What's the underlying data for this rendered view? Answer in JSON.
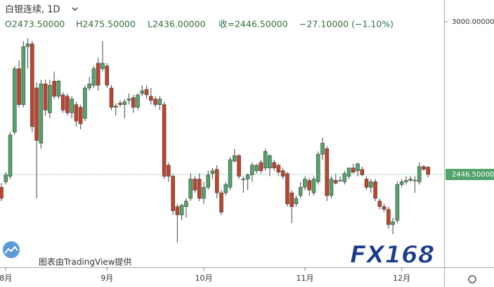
{
  "header": {
    "symbol": "白银连续, 1D",
    "open": "O2473.50000",
    "high": "H2475.50000",
    "low": "L2436.00000",
    "close": "收=2446.50000",
    "change": "−27.10000 (−1.10%)"
  },
  "credit": "图表由TradingView提供",
  "logo": "FX168",
  "chart_data": {
    "type": "candlestick",
    "up_color": "#53a36b",
    "down_color": "#c0432c",
    "categories": [
      null,
      "8月",
      null,
      null,
      null,
      null,
      null,
      null,
      null,
      null,
      null,
      null,
      null,
      null,
      null,
      null,
      null,
      null,
      null,
      null,
      null,
      null,
      null,
      null,
      "9月",
      null,
      null,
      null,
      null,
      null,
      null,
      null,
      null,
      null,
      null,
      null,
      null,
      null,
      null,
      null,
      null,
      null,
      null,
      null,
      null,
      null,
      "10月",
      null,
      null,
      null,
      null,
      null,
      null,
      null,
      null,
      null,
      null,
      null,
      null,
      null,
      null,
      null,
      null,
      null,
      null,
      null,
      null,
      null,
      null,
      "11月",
      null,
      null,
      null,
      null,
      null,
      null,
      null,
      null,
      null,
      null,
      null,
      null,
      null,
      null,
      null,
      null,
      null,
      null,
      null,
      null,
      null,
      "12月",
      null,
      null,
      null,
      null,
      null,
      null
    ],
    "open": [
      2400,
      2420,
      2440,
      2600,
      2830,
      2700,
      2910,
      2920,
      2760,
      2560,
      2775,
      2670,
      2785,
      2730,
      2735,
      2730,
      2670,
      2700,
      2690,
      2650,
      2760,
      2770,
      2850,
      2830,
      2840,
      2760,
      2690,
      2705,
      2700,
      2715,
      2725,
      2690,
      2740,
      2755,
      2730,
      2720,
      2700,
      2700,
      2480,
      2440,
      2330,
      2300,
      2330,
      2360,
      2430,
      2430,
      2360,
      2400,
      2450,
      2465,
      2380,
      2380,
      2400,
      2495,
      2515,
      2430,
      2430,
      2445,
      2460,
      2490,
      2470,
      2470,
      2490,
      2480,
      2460,
      2450,
      2380,
      2340,
      2370,
      2400,
      2425,
      2380,
      2420,
      2520,
      2540,
      2370,
      2425,
      2425,
      2420,
      2440,
      2470,
      2460,
      2465,
      2430,
      2400,
      2420,
      2350,
      2330,
      2320,
      2265,
      2280,
      2410,
      2420,
      2425,
      2425,
      2420,
      2475,
      2473.5
    ],
    "high": [
      2415,
      2455,
      2600,
      2840,
      2860,
      2930,
      2940,
      2930,
      2780,
      2790,
      2790,
      2790,
      2820,
      2790,
      2745,
      2740,
      2730,
      2710,
      2700,
      2770,
      2800,
      2840,
      2870,
      2930,
      2850,
      2770,
      2705,
      2715,
      2720,
      2740,
      2735,
      2740,
      2770,
      2770,
      2760,
      2730,
      2730,
      2710,
      2490,
      2450,
      2340,
      2340,
      2360,
      2450,
      2440,
      2450,
      2420,
      2460,
      2470,
      2480,
      2390,
      2420,
      2510,
      2540,
      2520,
      2440,
      2450,
      2490,
      2485,
      2500,
      2540,
      2520,
      2500,
      2485,
      2470,
      2455,
      2390,
      2370,
      2420,
      2440,
      2435,
      2440,
      2530,
      2580,
      2550,
      2440,
      2450,
      2440,
      2460,
      2470,
      2485,
      2490,
      2475,
      2440,
      2430,
      2430,
      2360,
      2340,
      2330,
      2290,
      2420,
      2430,
      2440,
      2440,
      2440,
      2490,
      2480,
      2475.5
    ],
    "low": [
      2350,
      2410,
      2430,
      2590,
      2690,
      2690,
      2830,
      2600,
      2360,
      2540,
      2660,
      2650,
      2720,
      2720,
      2670,
      2660,
      2650,
      2620,
      2610,
      2640,
      2750,
      2760,
      2750,
      2820,
      2760,
      2680,
      2660,
      2690,
      2650,
      2700,
      2670,
      2680,
      2730,
      2720,
      2700,
      2690,
      2680,
      2430,
      2420,
      2300,
      2200,
      2280,
      2290,
      2350,
      2380,
      2350,
      2340,
      2390,
      2430,
      2360,
      2300,
      2370,
      2390,
      2490,
      2430,
      2380,
      2390,
      2420,
      2450,
      2450,
      2460,
      2440,
      2460,
      2440,
      2430,
      2330,
      2270,
      2330,
      2360,
      2390,
      2370,
      2370,
      2410,
      2500,
      2350,
      2360,
      2410,
      2420,
      2410,
      2430,
      2450,
      2440,
      2440,
      2390,
      2380,
      2350,
      2320,
      2310,
      2250,
      2230,
      2270,
      2400,
      2410,
      2420,
      2380,
      2410,
      2460,
      2436
    ],
    "close": [
      2360,
      2445,
      2590,
      2830,
      2700,
      2910,
      2920,
      2620,
      2570,
      2775,
      2680,
      2770,
      2730,
      2785,
      2680,
      2670,
      2720,
      2640,
      2630,
      2760,
      2775,
      2830,
      2770,
      2850,
      2770,
      2690,
      2695,
      2700,
      2710,
      2720,
      2690,
      2735,
      2750,
      2735,
      2715,
      2700,
      2720,
      2440,
      2440,
      2315,
      2300,
      2335,
      2350,
      2430,
      2390,
      2360,
      2400,
      2445,
      2460,
      2380,
      2310,
      2410,
      2500,
      2515,
      2440,
      2428,
      2445,
      2480,
      2480,
      2460,
      2530,
      2515,
      2470,
      2455,
      2440,
      2340,
      2330,
      2360,
      2400,
      2430,
      2390,
      2430,
      2520,
      2560,
      2370,
      2430,
      2415,
      2426,
      2450,
      2470,
      2455,
      2485,
      2445,
      2400,
      2420,
      2360,
      2330,
      2320,
      2265,
      2275,
      2410,
      2420,
      2425,
      2430,
      2426,
      2475,
      2465,
      2446.5
    ],
    "ylim": [
      2110,
      3079
    ],
    "yticks": [
      {
        "value": 3000,
        "label": "3000.00000"
      }
    ],
    "last_price": {
      "value": 2446.5,
      "label": "2446.50000"
    }
  }
}
